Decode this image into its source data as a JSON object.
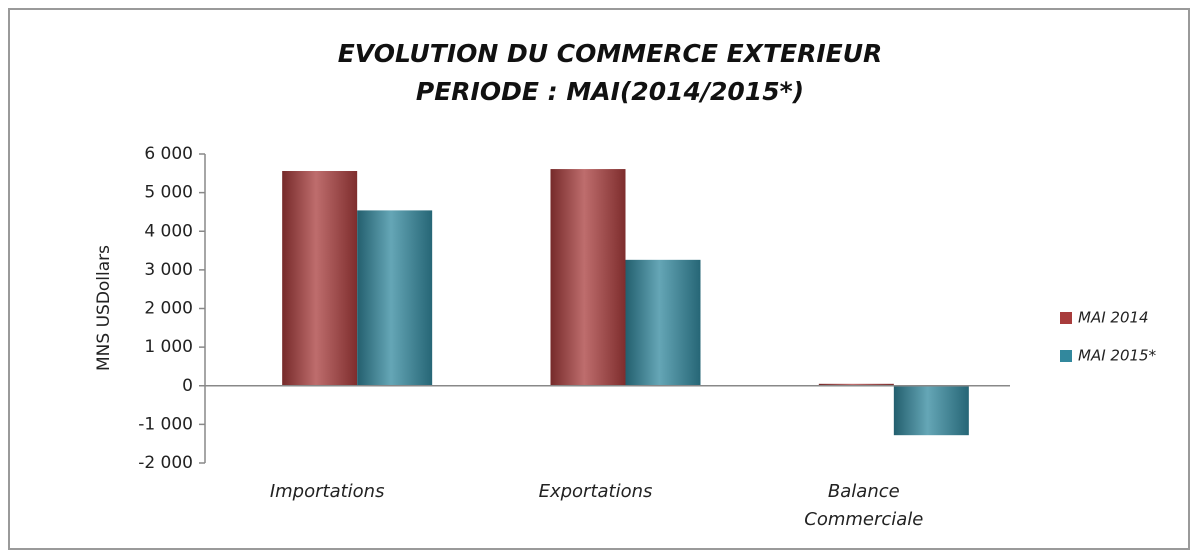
{
  "chart_data": {
    "type": "bar",
    "title": "EVOLUTION DU COMMERCE EXTERIEUR",
    "subtitle": "PERIODE : MAI(2014/2015*)",
    "y_label": "MNS USDollars",
    "categories": [
      "Importations",
      "Exportations",
      "Balance Commerciale"
    ],
    "series": [
      {
        "name": "MAI 2014",
        "color": "#a83c3c",
        "values": [
          5560,
          5610,
          50
        ]
      },
      {
        "name": "MAI 2015*",
        "color": "#32889d",
        "values": [
          4540,
          3260,
          -1280
        ]
      }
    ],
    "ylim": [
      -2000,
      6000
    ],
    "yticks": [
      {
        "value": -2000,
        "label": "-2 000"
      },
      {
        "value": -1000,
        "label": "-1 000"
      },
      0,
      {
        "value": 1000,
        "label": "1 000"
      },
      {
        "value": 2000,
        "label": "2 000"
      },
      {
        "value": 3000,
        "label": "3 000"
      },
      {
        "value": 4000,
        "label": "4 000"
      },
      {
        "value": 5000,
        "label": "5 000"
      },
      {
        "value": 6000,
        "label": "6 000"
      }
    ],
    "grid": false,
    "legend": "right"
  }
}
